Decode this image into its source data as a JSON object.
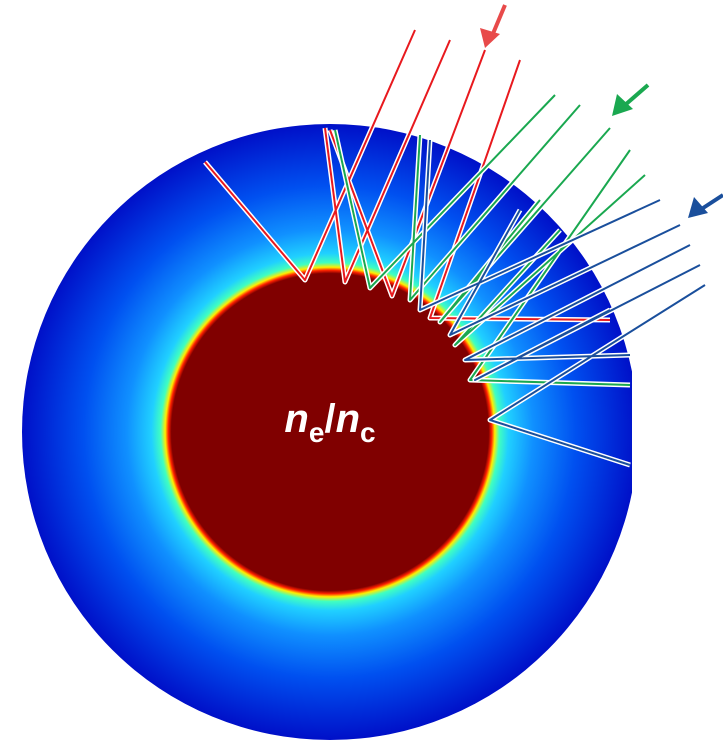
{
  "label": {
    "main1": "n",
    "sub1": "e",
    "sep": "/",
    "main2": "n",
    "sub2": "c"
  }
}
